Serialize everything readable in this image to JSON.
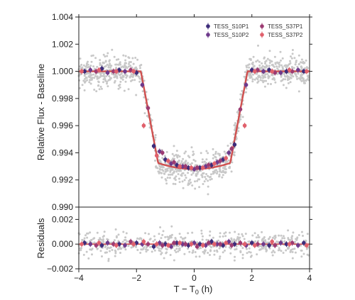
{
  "chart_data": [
    {
      "type": "scatter",
      "panel": "top",
      "ylabel": "Relative Flux - Baseline",
      "xlim": [
        -4,
        4
      ],
      "ylim": [
        0.99,
        1.004
      ],
      "yticks": [
        "0.990",
        "0.992",
        "0.994",
        "0.996",
        "0.998",
        "1.000",
        "1.002",
        "1.004"
      ],
      "legend": "top-right",
      "raw_points_color": "#c8c8c8",
      "model_color": "#d0504f",
      "series": [
        {
          "name": "TESS_S10P1",
          "color": "#3d2c7a",
          "x": [
            -3.8,
            -3.2,
            -2.6,
            -2.0,
            -1.4,
            -1.0,
            -0.6,
            -0.2,
            0.2,
            0.6,
            1.0,
            1.4,
            2.0,
            2.6,
            3.2,
            3.8
          ],
          "y": [
            1.0,
            1.0002,
            1.0001,
            0.9999,
            0.9945,
            0.9935,
            0.9931,
            0.9929,
            0.9929,
            0.9931,
            0.9935,
            0.9946,
            1.0001,
            1.0001,
            1.0,
            1.0
          ]
        },
        {
          "name": "TESS_S10P2",
          "color": "#6e3a8c",
          "x": [
            -3.6,
            -3.0,
            -2.4,
            -1.8,
            -1.2,
            -0.8,
            -0.4,
            0.0,
            0.4,
            0.8,
            1.2,
            1.8,
            2.4,
            3.0,
            3.6
          ],
          "y": [
            1.0001,
            0.9999,
            1.0,
            0.999,
            0.9941,
            0.9932,
            0.993,
            0.9928,
            0.993,
            0.9933,
            0.994,
            0.999,
            1.0,
            0.9999,
            1.0001
          ]
        },
        {
          "name": "TESS_S37P1",
          "color": "#9c3b72",
          "x": [
            -3.4,
            -2.8,
            -2.2,
            -1.6,
            -1.1,
            -0.7,
            -0.3,
            0.1,
            0.5,
            0.9,
            1.3,
            1.6,
            2.2,
            2.8,
            3.4
          ],
          "y": [
            1.0,
            1.0,
            1.0001,
            0.9973,
            0.994,
            0.9933,
            0.993,
            0.9929,
            0.9931,
            0.9934,
            0.9943,
            0.9972,
            1.0001,
            0.9999,
            1.0
          ]
        },
        {
          "name": "TESS_S37P2",
          "color": "#e0606c",
          "x": [
            -3.9,
            -3.3,
            -2.7,
            -2.1,
            -1.75,
            -1.3,
            -0.9,
            -0.5,
            -0.1,
            0.3,
            0.7,
            1.1,
            1.75,
            2.1,
            2.7,
            3.3,
            3.9
          ],
          "y": [
            1.0,
            1.0001,
            1.0,
            1.0,
            0.996,
            0.9938,
            0.9934,
            0.993,
            0.9929,
            0.9929,
            0.9932,
            0.9936,
            0.996,
            1.0,
            1.0,
            1.0001,
            1.0
          ]
        }
      ]
    },
    {
      "type": "scatter",
      "panel": "bottom",
      "ylabel": "Residuals",
      "xlabel": "T − T",
      "xlabel_subscript": "0",
      "xlabel_unit": " (h)",
      "xlim": [
        -4,
        4
      ],
      "xticks": [
        "−4",
        "−2",
        "0",
        "2",
        "4"
      ],
      "ylim": [
        -0.002,
        0.003
      ],
      "yticks": [
        "−0.002",
        "0.000",
        "0.002"
      ],
      "zero_line_color": "#d0504f",
      "series": [
        {
          "name": "TESS_S10P1",
          "color": "#3d2c7a",
          "x": [
            -3.8,
            -3.2,
            -2.6,
            -2.0,
            -1.4,
            -1.0,
            -0.6,
            -0.2,
            0.2,
            0.6,
            1.0,
            1.4,
            2.0,
            2.6,
            3.2,
            3.8
          ],
          "y": [
            0.0001,
            -0.0001,
            0.0,
            0.0001,
            -0.0002,
            0.0,
            0.0001,
            -0.0001,
            0.0,
            0.0002,
            -0.0001,
            0.0,
            0.0001,
            -0.0001,
            0.0,
            0.0001
          ]
        },
        {
          "name": "TESS_S10P2",
          "color": "#6e3a8c",
          "x": [
            -3.6,
            -3.0,
            -2.4,
            -1.8,
            -1.2,
            -0.8,
            -0.4,
            0.0,
            0.4,
            0.8,
            1.2,
            1.8,
            2.4,
            3.0,
            3.6
          ],
          "y": [
            0.0,
            0.0001,
            -0.0001,
            0.0,
            0.0001,
            -0.0002,
            0.0,
            0.0001,
            -0.0001,
            0.0,
            0.0002,
            -0.0001,
            0.0,
            0.0001,
            -0.0001
          ]
        },
        {
          "name": "TESS_S37P1",
          "color": "#9c3b72",
          "x": [
            -3.4,
            -2.8,
            -2.2,
            -1.6,
            -1.1,
            -0.7,
            -0.3,
            0.1,
            0.5,
            0.9,
            1.3,
            1.6,
            2.2,
            2.8,
            3.4
          ],
          "y": [
            -0.0001,
            0.0,
            0.0002,
            0.0,
            -0.0001,
            0.0001,
            0.0,
            -0.0002,
            0.0001,
            0.0,
            -0.0001,
            0.0001,
            0.0,
            -0.0001,
            0.0001
          ]
        },
        {
          "name": "TESS_S37P2",
          "color": "#e0606c",
          "x": [
            -3.9,
            -3.3,
            -2.7,
            -2.1,
            -1.75,
            -1.3,
            -0.9,
            -0.5,
            -0.1,
            0.3,
            0.7,
            1.1,
            1.75,
            2.1,
            2.7,
            3.3,
            3.9
          ],
          "y": [
            0.0,
            0.0001,
            -0.0001,
            0.0,
            0.0002,
            0.0,
            -0.0001,
            0.0001,
            0.0,
            -0.0001,
            0.0,
            0.0001,
            0.0,
            -0.0001,
            0.0002,
            0.0,
            -0.0001
          ]
        }
      ]
    }
  ]
}
